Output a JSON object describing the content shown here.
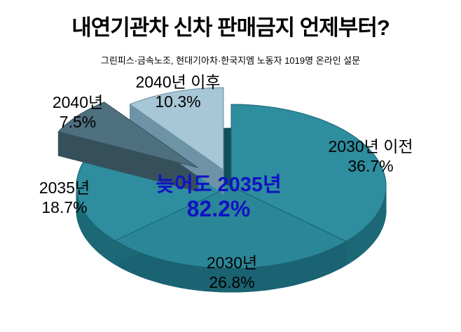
{
  "chart_data": {
    "type": "pie",
    "style": "3d-exploded",
    "title": "내연기관차 신차 판매금지 언제부터?",
    "subtitle": "그린피스·금속노조, 현대기아차·한국지엠 노동자 1019명 온라인 설문",
    "unit": "%",
    "start_angle_deg": 0,
    "direction": "clockwise",
    "label_color": "#000000",
    "floor_color": "#124E5A",
    "slices": [
      {
        "label": "2030년 이전",
        "value": 36.7,
        "display": "36.7%",
        "color": "#2E8D9E",
        "side_color": "#1C6877",
        "explode": 0
      },
      {
        "label": "2030년",
        "value": 26.8,
        "display": "26.8%",
        "color": "#2B8798",
        "side_color": "#1A6372",
        "explode": 0
      },
      {
        "label": "2035년",
        "value": 18.7,
        "display": "18.7%",
        "color": "#2E8D9E",
        "side_color": "#1C6877",
        "explode": 0
      },
      {
        "label": "2040년",
        "value": 7.5,
        "display": "7.5%",
        "color": "#4E6F7E",
        "side_color": "#36505B",
        "explode": 0.28
      },
      {
        "label": "2040년 이후",
        "value": 10.3,
        "display": "10.3%",
        "color": "#A7C6D6",
        "side_color": "#6E93A6",
        "explode": 0.16
      }
    ],
    "annotation": {
      "line1": "늦어도  2035년",
      "line2": "82.2%",
      "color": "#1012C4"
    }
  }
}
